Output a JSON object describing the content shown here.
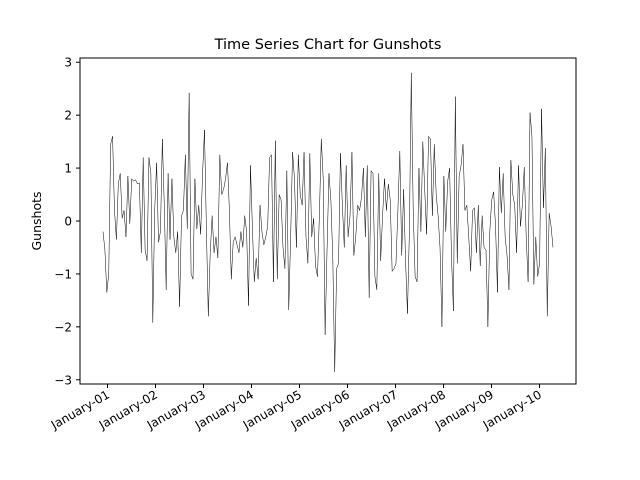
{
  "chart_data": {
    "type": "line",
    "title": "Time Series Chart for Gunshots",
    "xlabel": "",
    "ylabel": "Gunshots",
    "grid": false,
    "legend": "none",
    "line_color": "#000000",
    "x_start": "2019-12-28",
    "x_step_days": 1,
    "x_ticks": [
      {
        "date": "2020-01-01",
        "label": "January-01"
      },
      {
        "date": "2020-01-02",
        "label": "January-02"
      },
      {
        "date": "2020-01-03",
        "label": "January-03"
      },
      {
        "date": "2020-01-04",
        "label": "January-04"
      },
      {
        "date": "2020-01-05",
        "label": "January-05"
      },
      {
        "date": "2020-01-06",
        "label": "January-06"
      },
      {
        "date": "2020-01-07",
        "label": "January-07"
      },
      {
        "date": "2020-01-08",
        "label": "January-08"
      },
      {
        "date": "2020-01-09",
        "label": "January-09"
      },
      {
        "date": "2020-01-10",
        "label": "January-10"
      }
    ],
    "ylim": [
      -3.08,
      3.08
    ],
    "y_ticks": [
      -3,
      -2,
      -1,
      0,
      1,
      2,
      3
    ],
    "values": [
      -0.2,
      -0.55,
      -1.35,
      -1.0,
      1.45,
      1.6,
      0.2,
      -0.35,
      0.7,
      0.9,
      0.05,
      0.2,
      -0.3,
      0.85,
      -0.05,
      0.8,
      0.75,
      0.78,
      0.7,
      0.72,
      -0.6,
      1.2,
      -0.55,
      -0.75,
      1.2,
      0.9,
      -1.92,
      0.2,
      1.1,
      -0.4,
      -0.2,
      1.55,
      0.3,
      -1.3,
      0.9,
      -0.35,
      0.8,
      -0.3,
      -0.6,
      -0.2,
      -1.62,
      0.1,
      0.2,
      1.25,
      -0.15,
      2.42,
      -1.0,
      -1.1,
      0.8,
      -0.15,
      0.3,
      -0.25,
      0.9,
      1.72,
      -0.15,
      -1.8,
      -0.6,
      0.1,
      -0.6,
      -0.3,
      -0.7,
      1.25,
      0.5,
      0.6,
      0.8,
      1.1,
      0.2,
      -1.1,
      -0.4,
      -0.3,
      -0.45,
      -0.6,
      -0.2,
      -0.5,
      0.1,
      -0.2,
      -1.6,
      1.05,
      -0.1,
      -1.15,
      -0.7,
      -1.1,
      0.3,
      -0.2,
      -0.45,
      -0.3,
      -0.1,
      1.2,
      1.25,
      -1.15,
      1.52,
      -1.1,
      0.5,
      0.4,
      -0.5,
      -0.9,
      0.95,
      -1.68,
      -0.3,
      1.3,
      0.8,
      -0.5,
      1.25,
      0.5,
      0.3,
      1.3,
      -0.3,
      -0.8,
      1.28,
      -0.3,
      0.05,
      -0.85,
      -1.05,
      0.1,
      1.55,
      0.8,
      -2.15,
      -0.55,
      0.9,
      0.4,
      -0.7,
      -2.85,
      -0.9,
      -0.8,
      1.28,
      0.3,
      -0.5,
      1.05,
      -0.3,
      0.1,
      1.3,
      -0.65,
      -0.3,
      0.3,
      0.2,
      0.45,
      1.0,
      -0.3,
      1.05,
      -1.45,
      0.95,
      0.9,
      -1.05,
      -1.3,
      0.9,
      -0.75,
      0.1,
      0.8,
      0.2,
      0.7,
      0.4,
      -0.95,
      -0.9,
      -0.8,
      0.2,
      1.32,
      -0.65,
      0.6,
      -0.75,
      -1.75,
      -0.2,
      2.8,
      0.2,
      -1.05,
      -1.15,
      1.0,
      -0.2,
      1.5,
      0.6,
      -0.25,
      1.6,
      1.55,
      0.1,
      1.45,
      0.5,
      0.1,
      -0.5,
      -2.0,
      0.85,
      -0.2,
      0.75,
      1.0,
      -0.7,
      -1.7,
      2.35,
      -0.8,
      0.85,
      1.05,
      1.45,
      0.2,
      0.3,
      -0.3,
      -0.95,
      0.2,
      0.25,
      -0.6,
      0.3,
      -0.85,
      0.1,
      -0.5,
      -0.55,
      -2.0,
      -0.2,
      0.4,
      0.55,
      -0.1,
      -1.35,
      1.02,
      0.15,
      0.9,
      -0.3,
      -0.65,
      -1.3,
      1.15,
      0.5,
      0.3,
      -0.6,
      1.05,
      -0.1,
      0.3,
      1.02,
      -0.3,
      -1.15,
      2.05,
      1.6,
      -1.2,
      -0.3,
      -1.05,
      -0.8,
      2.12,
      0.25,
      1.38,
      -1.8,
      0.15,
      -0.1,
      -0.5
    ]
  }
}
